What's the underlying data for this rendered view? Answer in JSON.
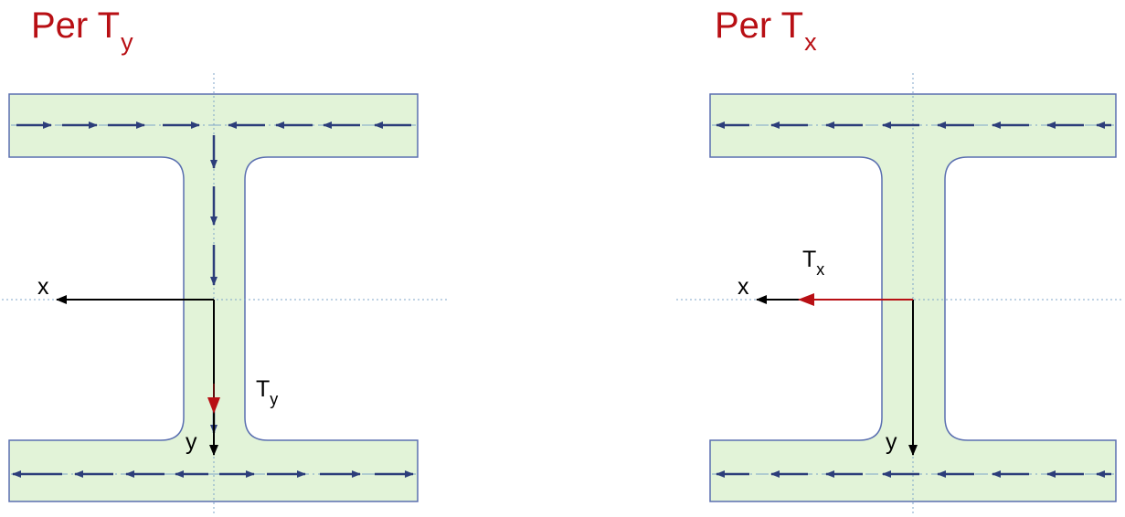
{
  "colors": {
    "section_fill": "#e2f3d8",
    "section_stroke": "#5a6fb0",
    "flow_arrow": "#2c3d7a",
    "centerline": "#7fa4c8",
    "axis": "#000000",
    "force": "#b80f14",
    "title": "#b80f14"
  },
  "left": {
    "title_main": "Per T",
    "title_sub": "y",
    "axis_x": "x",
    "axis_y": "y",
    "force_main": "T",
    "force_sub": "y"
  },
  "right": {
    "title_main": "Per T",
    "title_sub": "x",
    "axis_x": "x",
    "axis_y": "y",
    "force_main": "T",
    "force_sub": "x"
  }
}
